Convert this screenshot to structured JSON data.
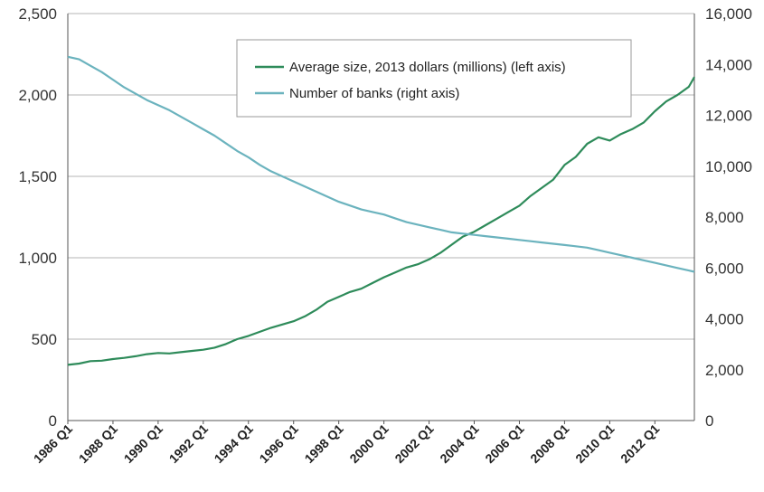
{
  "chart_data": {
    "type": "line",
    "title": "",
    "xlabel": "",
    "ylabel_left": "",
    "ylabel_right": "",
    "x_range": [
      1986.0,
      2013.75
    ],
    "x_ticks": [
      "1986 Q1",
      "1988 Q1",
      "1990 Q1",
      "1992 Q1",
      "1994 Q1",
      "1996 Q1",
      "1998 Q1",
      "2000 Q1",
      "2002 Q1",
      "2004 Q1",
      "2006 Q1",
      "2008 Q1",
      "2010 Q1",
      "2012 Q1"
    ],
    "y_left": {
      "range": [
        0,
        2500
      ],
      "ticks": [
        "0",
        "500",
        "1,000",
        "1,500",
        "2,000",
        "2,500"
      ]
    },
    "y_right": {
      "range": [
        0,
        16000
      ],
      "ticks": [
        "0",
        "2,000",
        "4,000",
        "6,000",
        "8,000",
        "10,000",
        "12,000",
        "14,000",
        "16,000"
      ]
    },
    "grid": "horizontal",
    "legend_placement": "top-right",
    "series": [
      {
        "name": "Average size, 2013 dollars (millions) (left axis)",
        "axis": "left",
        "color": "#2e8b5a",
        "points": [
          [
            "1986 Q1",
            342
          ],
          [
            "1986 Q3",
            350
          ],
          [
            "1987 Q1",
            365
          ],
          [
            "1987 Q3",
            368
          ],
          [
            "1988 Q1",
            378
          ],
          [
            "1988 Q3",
            385
          ],
          [
            "1989 Q1",
            395
          ],
          [
            "1989 Q3",
            408
          ],
          [
            "1990 Q1",
            415
          ],
          [
            "1990 Q3",
            412
          ],
          [
            "1991 Q1",
            420
          ],
          [
            "1991 Q3",
            428
          ],
          [
            "1992 Q1",
            435
          ],
          [
            "1992 Q3",
            448
          ],
          [
            "1993 Q1",
            470
          ],
          [
            "1993 Q3",
            500
          ],
          [
            "1994 Q1",
            520
          ],
          [
            "1994 Q3",
            545
          ],
          [
            "1995 Q1",
            570
          ],
          [
            "1995 Q3",
            590
          ],
          [
            "1996 Q1",
            610
          ],
          [
            "1996 Q3",
            640
          ],
          [
            "1997 Q1",
            680
          ],
          [
            "1997 Q3",
            730
          ],
          [
            "1998 Q1",
            760
          ],
          [
            "1998 Q3",
            790
          ],
          [
            "1999 Q1",
            810
          ],
          [
            "1999 Q3",
            845
          ],
          [
            "2000 Q1",
            880
          ],
          [
            "2000 Q3",
            910
          ],
          [
            "2001 Q1",
            940
          ],
          [
            "2001 Q3",
            960
          ],
          [
            "2002 Q1",
            990
          ],
          [
            "2002 Q3",
            1030
          ],
          [
            "2003 Q1",
            1080
          ],
          [
            "2003 Q3",
            1130
          ],
          [
            "2004 Q1",
            1160
          ],
          [
            "2004 Q3",
            1200
          ],
          [
            "2005 Q1",
            1240
          ],
          [
            "2005 Q3",
            1280
          ],
          [
            "2006 Q1",
            1320
          ],
          [
            "2006 Q3",
            1380
          ],
          [
            "2007 Q1",
            1430
          ],
          [
            "2007 Q3",
            1480
          ],
          [
            "2008 Q1",
            1570
          ],
          [
            "2008 Q3",
            1620
          ],
          [
            "2009 Q1",
            1700
          ],
          [
            "2009 Q3",
            1740
          ],
          [
            "2010 Q1",
            1720
          ],
          [
            "2010 Q3",
            1760
          ],
          [
            "2011 Q1",
            1790
          ],
          [
            "2011 Q3",
            1830
          ],
          [
            "2012 Q1",
            1900
          ],
          [
            "2012 Q3",
            1960
          ],
          [
            "2013 Q1",
            2000
          ],
          [
            "2013 Q3",
            2050
          ],
          [
            "2013 Q4",
            2110
          ]
        ]
      },
      {
        "name": "Number of banks (right axis)",
        "axis": "right",
        "color": "#6bb3be",
        "points": [
          [
            "1986 Q1",
            14300
          ],
          [
            "1986 Q3",
            14200
          ],
          [
            "1987 Q1",
            13950
          ],
          [
            "1987 Q3",
            13700
          ],
          [
            "1988 Q1",
            13400
          ],
          [
            "1988 Q3",
            13100
          ],
          [
            "1989 Q1",
            12850
          ],
          [
            "1989 Q3",
            12600
          ],
          [
            "1990 Q1",
            12400
          ],
          [
            "1990 Q3",
            12200
          ],
          [
            "1991 Q1",
            11950
          ],
          [
            "1991 Q3",
            11700
          ],
          [
            "1992 Q1",
            11450
          ],
          [
            "1992 Q3",
            11200
          ],
          [
            "1993 Q1",
            10900
          ],
          [
            "1993 Q3",
            10600
          ],
          [
            "1994 Q1",
            10350
          ],
          [
            "1994 Q3",
            10050
          ],
          [
            "1995 Q1",
            9800
          ],
          [
            "1995 Q3",
            9600
          ],
          [
            "1996 Q1",
            9400
          ],
          [
            "1996 Q3",
            9200
          ],
          [
            "1997 Q1",
            9000
          ],
          [
            "1997 Q3",
            8800
          ],
          [
            "1998 Q1",
            8600
          ],
          [
            "1998 Q3",
            8450
          ],
          [
            "1999 Q1",
            8300
          ],
          [
            "1999 Q3",
            8200
          ],
          [
            "2000 Q1",
            8100
          ],
          [
            "2000 Q3",
            7950
          ],
          [
            "2001 Q1",
            7800
          ],
          [
            "2001 Q3",
            7700
          ],
          [
            "2002 Q1",
            7600
          ],
          [
            "2002 Q3",
            7500
          ],
          [
            "2003 Q1",
            7400
          ],
          [
            "2003 Q3",
            7350
          ],
          [
            "2004 Q1",
            7300
          ],
          [
            "2004 Q3",
            7250
          ],
          [
            "2005 Q1",
            7200
          ],
          [
            "2005 Q3",
            7150
          ],
          [
            "2006 Q1",
            7100
          ],
          [
            "2006 Q3",
            7050
          ],
          [
            "2007 Q1",
            7000
          ],
          [
            "2007 Q3",
            6950
          ],
          [
            "2008 Q1",
            6900
          ],
          [
            "2008 Q3",
            6850
          ],
          [
            "2009 Q1",
            6800
          ],
          [
            "2009 Q3",
            6700
          ],
          [
            "2010 Q1",
            6600
          ],
          [
            "2010 Q3",
            6500
          ],
          [
            "2011 Q1",
            6400
          ],
          [
            "2011 Q3",
            6300
          ],
          [
            "2012 Q1",
            6200
          ],
          [
            "2012 Q3",
            6100
          ],
          [
            "2013 Q1",
            6000
          ],
          [
            "2013 Q3",
            5900
          ],
          [
            "2013 Q4",
            5850
          ]
        ]
      }
    ]
  }
}
